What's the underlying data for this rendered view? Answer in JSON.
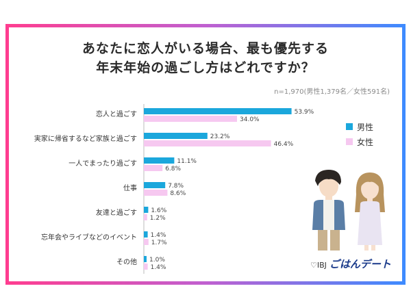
{
  "title_line1": "あなたに恋人がいる場合、最も優先する",
  "title_line2": "年末年始の過ごし方はどれですか？",
  "sample_note": "n=1,970(男性1,379名／女性591名)",
  "colors": {
    "male": "#1ba7dc",
    "female": "#f6c8f0"
  },
  "legend": {
    "male": "男性",
    "female": "女性"
  },
  "logo": {
    "prefix": "♡IBJ",
    "name": "ごはんデート"
  },
  "chart_data": {
    "type": "bar",
    "orientation": "horizontal",
    "categories": [
      "恋人と過ごす",
      "実家に帰省するなど家族と過ごす",
      "一人でまったり過ごす",
      "仕事",
      "友達と過ごす",
      "忘年会やライブなどのイベント",
      "その他"
    ],
    "series": [
      {
        "name": "男性",
        "values": [
          53.9,
          23.2,
          11.1,
          7.8,
          1.6,
          1.4,
          1.0
        ]
      },
      {
        "name": "女性",
        "values": [
          34.0,
          46.4,
          6.8,
          8.6,
          1.2,
          1.7,
          1.4
        ]
      }
    ],
    "unit": "%",
    "xlim": [
      0,
      60
    ],
    "grid": false,
    "legend_position": "right"
  }
}
